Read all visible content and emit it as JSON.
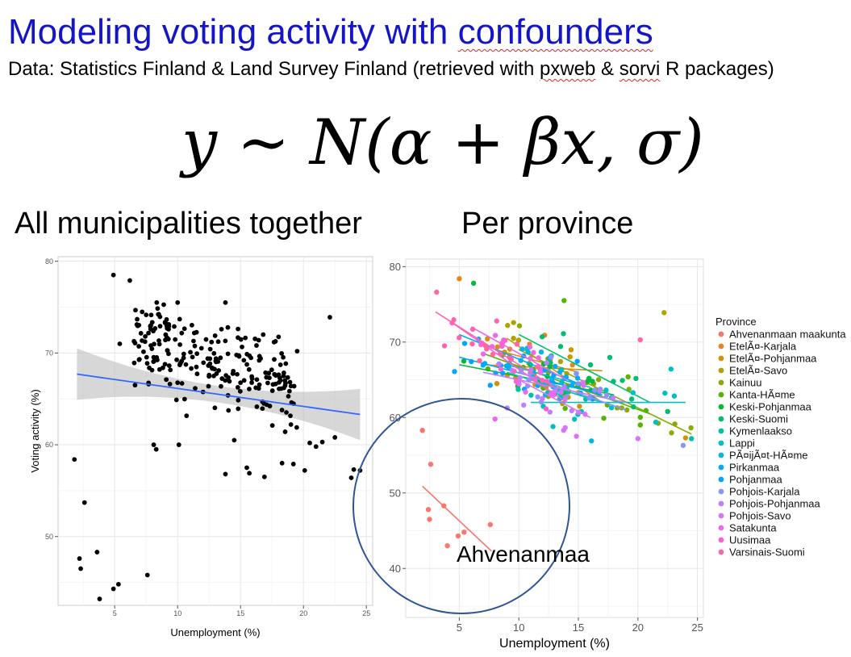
{
  "slide": {
    "title_plain": "Modeling voting activity with ",
    "title_squig": "confounders",
    "subtitle_a": "Data: Statistics Finland & Land Survey Finland (retrieved with ",
    "subtitle_pkg1": "pxweb",
    "subtitle_mid": " & ",
    "subtitle_pkg2": "sorvi",
    "subtitle_end": " R packages)",
    "formula": "y ∼ N(α + βx, σ)",
    "left_heading": "All municipalities together",
    "right_heading": "Per province",
    "annotation": "Ahvenanmaa"
  },
  "chart_data": [
    {
      "type": "scatter",
      "title": "All municipalities together",
      "xlabel": "Unemployment (%)",
      "ylabel": "Voting activity (%)",
      "xlim": [
        0.5,
        25.5
      ],
      "ylim": [
        42.5,
        80.5
      ],
      "xticks": [
        5,
        10,
        15,
        20,
        25
      ],
      "yticks": [
        50,
        60,
        70,
        80
      ],
      "grid": true,
      "point_color": "#000000",
      "fit": {
        "method": "linear",
        "x": [
          2,
          24.5
        ],
        "y": [
          67.7,
          63.3
        ],
        "color": "#3366ff",
        "band_color": "#bdbdbd"
      }
    },
    {
      "type": "scatter",
      "title": "Per province",
      "xlabel": "Unemployment (%)",
      "ylabel": "",
      "xlim": [
        0.5,
        25.5
      ],
      "ylim": [
        33.5,
        81
      ],
      "xticks": [
        5,
        10,
        15,
        20,
        25
      ],
      "yticks": [
        40,
        50,
        60,
        70,
        80
      ],
      "grid": true,
      "legend": {
        "title": "Province",
        "position": "right"
      },
      "series": [
        {
          "name": "Ahvenanmaan maakunta",
          "color": "#f8766d",
          "points": [
            [
              1.9,
              58.3
            ],
            [
              2.4,
              47.8
            ],
            [
              2.5,
              46.5
            ],
            [
              2.6,
              53.8
            ],
            [
              3.7,
              48.3
            ],
            [
              4.0,
              43.0
            ],
            [
              4.9,
              44.3
            ],
            [
              5.4,
              44.8
            ],
            [
              7.6,
              45.8
            ]
          ],
          "fit": [
            [
              1.9,
              50.9
            ],
            [
              7.7,
              42.3
            ]
          ]
        },
        {
          "name": "EtelÃ¤-Karjala",
          "color": "#e7851e",
          "points": [],
          "fit": [
            [
              8,
              69
            ],
            [
              15,
              66
            ]
          ]
        },
        {
          "name": "EtelÃ¤-Pohjanmaa",
          "color": "#d09400",
          "points": [],
          "fit": [
            [
              7,
              67
            ],
            [
              17,
              66.2
            ]
          ]
        },
        {
          "name": "EtelÃ¤-Savo",
          "color": "#b2a100",
          "points": [],
          "fit": [
            [
              9,
              70.5
            ],
            [
              17,
              62
            ]
          ]
        },
        {
          "name": "Kainuu",
          "color": "#8aab00",
          "points": [],
          "fit": [
            [
              10,
              69
            ],
            [
              24.5,
              57.8
            ]
          ]
        },
        {
          "name": "Kanta-HÃ¤me",
          "color": "#55b400",
          "points": [],
          "fit": [
            [
              7,
              68.5
            ],
            [
              21,
              60.5
            ]
          ]
        },
        {
          "name": "Keski-Pohjanmaa",
          "color": "#00ba38",
          "points": [],
          "fit": [
            [
              5,
              67
            ],
            [
              18,
              63
            ]
          ]
        },
        {
          "name": "Keski-Suomi",
          "color": "#00be70",
          "points": [],
          "fit": [
            [
              10,
              71
            ],
            [
              21,
              62
            ]
          ]
        },
        {
          "name": "Kymenlaakso",
          "color": "#00c1a3",
          "points": [],
          "fit": [
            [
              9,
              66
            ],
            [
              17,
              62
            ]
          ]
        },
        {
          "name": "Lappi",
          "color": "#00bfc4",
          "points": [],
          "fit": [
            [
              11,
              62
            ],
            [
              24,
              62
            ]
          ]
        },
        {
          "name": "PÃ¤ijÃ¤t-HÃ¤me",
          "color": "#00b8e5",
          "points": [],
          "fit": [
            [
              9,
              67
            ],
            [
              16,
              64
            ]
          ]
        },
        {
          "name": "Pirkanmaa",
          "color": "#00abfd",
          "points": [],
          "fit": [
            [
              5,
              71
            ],
            [
              15,
              64.5
            ]
          ]
        },
        {
          "name": "Pohjanmaa",
          "color": "#00a5ff",
          "points": [],
          "fit": [
            [
              5,
              68
            ],
            [
              17,
              63
            ]
          ]
        },
        {
          "name": "Pohjois-Karjala",
          "color": "#8b93ff",
          "points": [],
          "fit": [
            [
              10,
              66
            ],
            [
              19,
              61
            ]
          ]
        },
        {
          "name": "Pohjois-Pohjanmaa",
          "color": "#bf80ff",
          "points": [],
          "fit": [
            [
              7,
              66
            ],
            [
              19,
              62
            ]
          ]
        },
        {
          "name": "Pohjois-Savo",
          "color": "#dc71fa",
          "points": [],
          "fit": [
            [
              10,
              65
            ],
            [
              16,
              60
            ]
          ]
        },
        {
          "name": "Satakunta",
          "color": "#ef67eb",
          "points": [],
          "fit": [
            [
              6,
              72
            ],
            [
              14,
              65
            ]
          ]
        },
        {
          "name": "Uusimaa",
          "color": "#fb61d7",
          "points": [],
          "fit": [
            [
              4,
              73
            ],
            [
              14,
              62
            ]
          ]
        },
        {
          "name": "Varsinais-Suomi",
          "color": "#ff66a8",
          "points": [],
          "fit": [
            [
              3,
              74
            ],
            [
              13,
              64
            ]
          ]
        }
      ]
    }
  ]
}
